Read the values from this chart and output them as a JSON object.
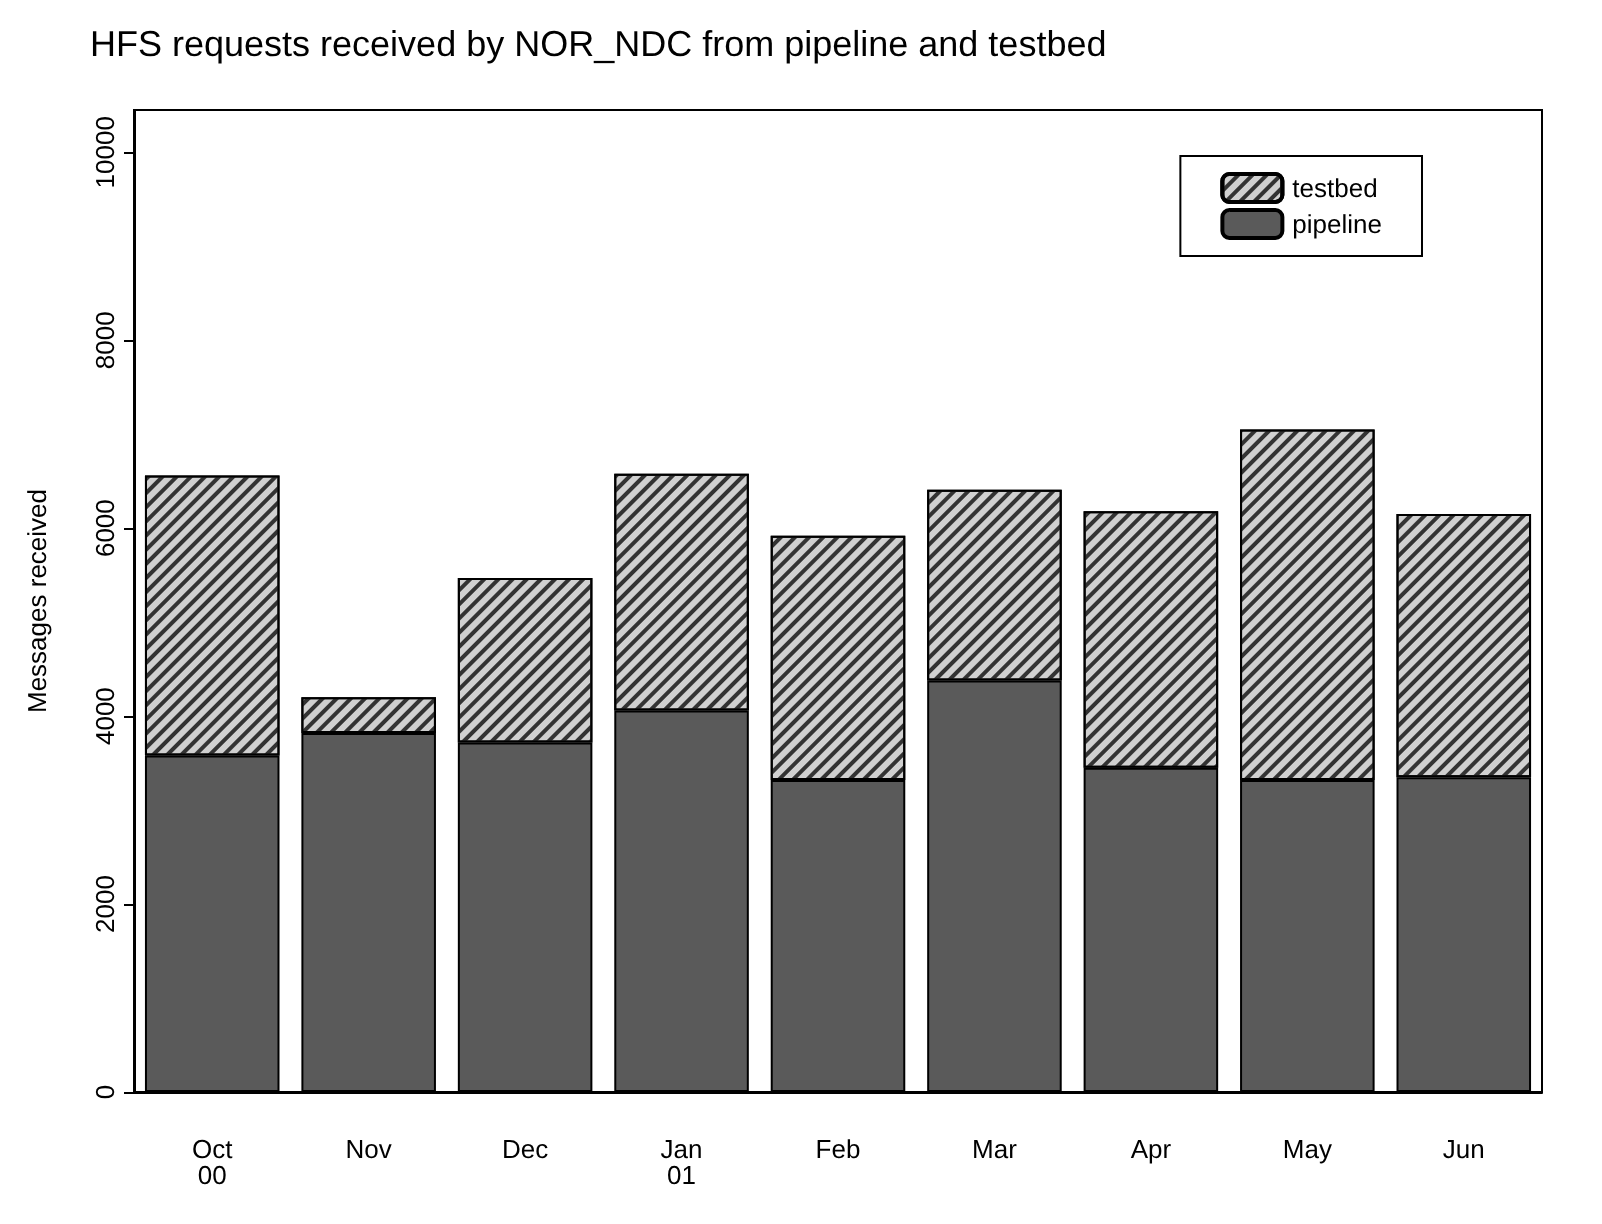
{
  "chart_data": {
    "type": "bar",
    "title": "HFS requests received by NOR_NDC from pipeline and testbed",
    "ylabel": "Messages received",
    "categories": [
      "Oct\n00",
      "Nov",
      "Dec",
      "Jan\n01",
      "Feb",
      "Mar",
      "Apr",
      "May",
      "Jun"
    ],
    "stacked": true,
    "series": [
      {
        "name": "pipeline",
        "color": "#5a5a5a",
        "values": [
          3580,
          3820,
          3720,
          4060,
          3320,
          4380,
          3450,
          3320,
          3350
        ]
      },
      {
        "name": "testbed",
        "color": "#d0d0d0",
        "values": [
          2980,
          380,
          1750,
          2520,
          2600,
          2030,
          2730,
          3730,
          2800
        ]
      }
    ],
    "ylim": [
      0,
      10450
    ],
    "yticks": [
      0,
      2000,
      4000,
      6000,
      8000,
      10000
    ],
    "grid": false,
    "legend": "top right"
  }
}
